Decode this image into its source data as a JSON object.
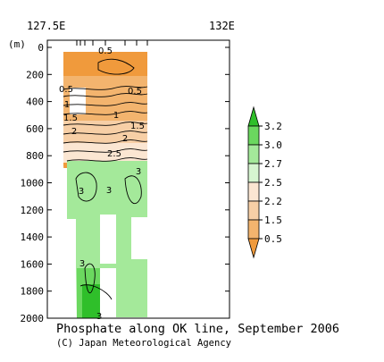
{
  "chart_data": {
    "type": "contour",
    "title": "Phosphate along OK line, September 2006",
    "credit": "(C) Japan Meteorological Agency",
    "x_axis": {
      "min_label": "127.5E",
      "max_label": "132E"
    },
    "y_axis": {
      "unit_label": "(m)",
      "range": [
        0,
        2000
      ],
      "ticks": [
        "0",
        "200",
        "400",
        "600",
        "800",
        "1000",
        "1200",
        "1400",
        "1600",
        "1800",
        "2000"
      ]
    },
    "colorbar": {
      "levels": [
        "0.5",
        "1.5",
        "2.2",
        "2.5",
        "2.7",
        "3.0",
        "3.2"
      ],
      "colors": [
        "#f09a3c",
        "#f3b46e",
        "#f7cfa6",
        "#fbe6d2",
        "#d6f5d0",
        "#a4e99a",
        "#6bd85f",
        "#2fbf2a"
      ]
    },
    "contour_labels": [
      "0.5",
      "0.5",
      "0.5",
      "1",
      "1.5",
      "1",
      "1.5",
      "2",
      "2",
      "2.5",
      "3",
      "3",
      "3",
      "3",
      "3"
    ]
  }
}
